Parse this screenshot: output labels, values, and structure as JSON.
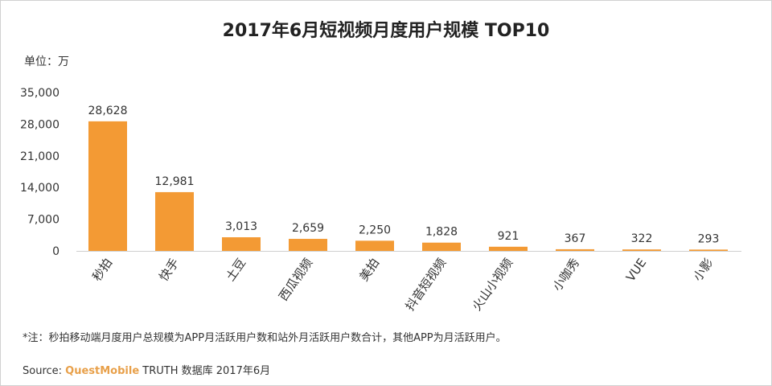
{
  "chart_data": {
    "type": "bar",
    "title": "2017年6月短视频月度用户规模 TOP10",
    "unit_label": "单位：万",
    "categories": [
      "秒拍",
      "快手",
      "土豆",
      "西瓜视频",
      "美拍",
      "抖音短视频",
      "火山小视频",
      "小咖秀",
      "VUE",
      "小影"
    ],
    "values": [
      28628,
      12981,
      3013,
      2659,
      2250,
      1828,
      921,
      367,
      322,
      293
    ],
    "data_labels": [
      "28,628",
      "12,981",
      "3,013",
      "2,659",
      "2,250",
      "1,828",
      "921",
      "367",
      "322",
      "293"
    ],
    "ylim": [
      0,
      35000
    ],
    "yticks": [
      "0",
      "7,000",
      "14,000",
      "21,000",
      "28,000",
      "35,000"
    ],
    "grid": false,
    "bar_color": "#f39a34",
    "note": "*注：秒拍移动端月度用户总规模为APP月活跃用户数和站外月活跃用户数合计，其他APP为月活跃用户。",
    "source_prefix": "Source:",
    "source_brand": "QuestMobile",
    "source_rest": "TRUTH 数据库 2017年6月"
  }
}
